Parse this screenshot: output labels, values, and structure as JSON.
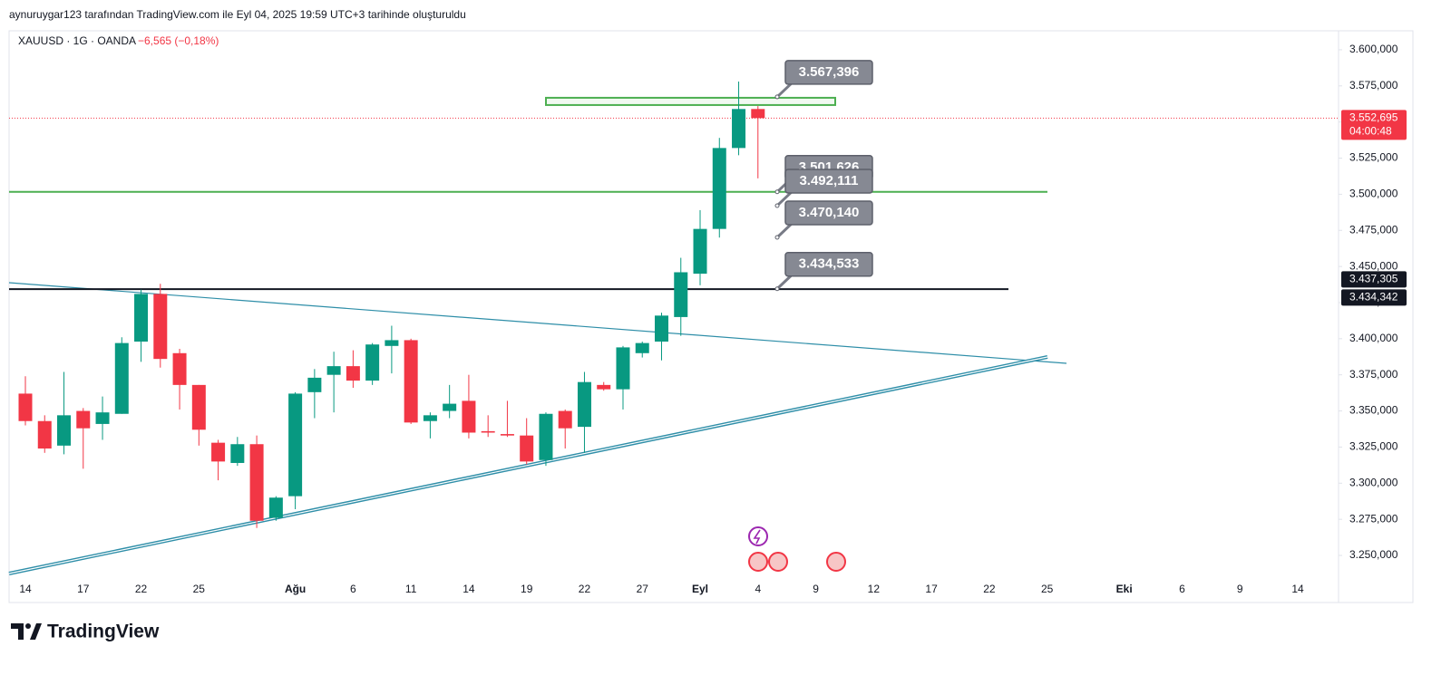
{
  "header": {
    "text": "aynuruygar123 tarafından TradingView.com ile Eyl 04, 2025 19:59 UTC+3 tarihinde oluşturuldu"
  },
  "footer": {
    "brand": "TradingView"
  },
  "chart_data": {
    "type": "candlestick",
    "symbol": "XAUUSD · 1G · OANDA",
    "change": "−6,565 (−0,18%)",
    "up_color": "#089981",
    "down_color": "#f23645",
    "grid": false,
    "categories": [
      "14",
      null,
      null,
      "17",
      null,
      null,
      "22",
      null,
      null,
      "25",
      null,
      null,
      null,
      null,
      "Ağu",
      null,
      null,
      "6",
      null,
      null,
      "11",
      null,
      null,
      "14",
      null,
      null,
      "19",
      null,
      null,
      "22",
      null,
      null,
      "27",
      null,
      null,
      "Eyl",
      null,
      null,
      "4",
      null,
      null,
      "9",
      null,
      null,
      "12",
      null,
      null,
      "17",
      null,
      null,
      "22",
      null,
      null,
      "25",
      null,
      null,
      null,
      "Eki",
      null,
      null,
      "6",
      null,
      null,
      "9",
      null,
      null,
      "14"
    ],
    "open": [
      3362,
      3343,
      3326,
      3350,
      3341,
      3348,
      3398,
      3431,
      3390,
      3368,
      3328,
      3314,
      3327,
      3276,
      3291,
      3363,
      3375,
      3381,
      3371,
      3395,
      3399,
      3343,
      3350,
      3357,
      3336,
      3334,
      3333,
      3316,
      3350,
      3339,
      3368,
      3365,
      3390,
      3398,
      3415,
      3445,
      3476,
      3532,
      3559,
      null,
      null,
      null,
      null,
      null,
      null,
      null,
      null,
      null,
      null,
      null,
      null,
      null,
      null,
      null,
      null,
      null,
      null,
      null,
      null,
      null,
      null,
      null,
      null,
      null,
      null,
      null,
      null
    ],
    "high": [
      3374,
      3347,
      3377,
      3352,
      3360,
      3401,
      3434,
      3438,
      3393,
      3368,
      3330,
      3332,
      3333,
      3291,
      3363,
      3379,
      3391,
      3392,
      3397,
      3409,
      3400,
      3349,
      3368,
      3375,
      3347,
      3357,
      3345,
      3349,
      3351,
      3377,
      3370,
      3395,
      3398,
      3418,
      3456,
      3489,
      3539,
      3578,
      3561,
      null,
      null,
      null,
      null,
      null,
      null,
      null,
      null,
      null,
      null,
      null,
      null,
      null,
      null,
      null,
      null,
      null,
      null,
      null,
      null,
      null,
      null,
      null,
      null,
      null,
      null,
      null,
      null
    ],
    "low": [
      3340,
      3321,
      3320,
      3310,
      3330,
      3348,
      3384,
      3380,
      3351,
      3326,
      3302,
      3312,
      3269,
      3274,
      3282,
      3345,
      3349,
      3366,
      3368,
      3376,
      3341,
      3331,
      3345,
      3331,
      3332,
      3332,
      3313,
      3312,
      3324,
      3321,
      3364,
      3351,
      3387,
      3385,
      3402,
      3437,
      3470,
      3527,
      3511,
      null,
      null,
      null,
      null,
      null,
      null,
      null,
      null,
      null,
      null,
      null,
      null,
      null,
      null,
      null,
      null,
      null,
      null,
      null,
      null,
      null,
      null,
      null,
      null,
      null,
      null,
      null,
      null
    ],
    "close": [
      3343,
      3324,
      3347,
      3338,
      3349,
      3397,
      3431,
      3386,
      3368,
      3337,
      3315,
      3327,
      3274,
      3290,
      3362,
      3373,
      3381,
      3371,
      3396,
      3399,
      3342,
      3347,
      3355,
      3335,
      3335,
      3333,
      3315,
      3348,
      3338,
      3370,
      3365,
      3394,
      3397,
      3416,
      3446,
      3476,
      3532,
      3559,
      3552.695,
      null,
      null,
      null,
      null,
      null,
      null,
      null,
      null,
      null,
      null,
      null,
      null,
      null,
      null,
      null,
      null,
      null,
      null,
      null,
      null,
      null,
      null,
      null,
      null,
      null,
      null,
      null,
      null
    ],
    "ylim": [
      3217.4,
      3612.5
    ],
    "yticks": [
      {
        "value": 3250,
        "label": "3.250,000"
      },
      {
        "value": 3275,
        "label": "3.275,000"
      },
      {
        "value": 3300,
        "label": "3.300,000"
      },
      {
        "value": 3325,
        "label": "3.325,000"
      },
      {
        "value": 3350,
        "label": "3.350,000"
      },
      {
        "value": 3375,
        "label": "3.375,000"
      },
      {
        "value": 3400,
        "label": "3.400,000"
      },
      {
        "value": 3425,
        "label": "3.425,000"
      },
      {
        "value": 3450,
        "label": "3.450,000"
      },
      {
        "value": 3475,
        "label": "3.475,000"
      },
      {
        "value": 3500,
        "label": "3.500,000"
      },
      {
        "value": 3525,
        "label": "3.525,000"
      },
      {
        "value": 3550,
        "label": "3.550,000"
      },
      {
        "value": 3575,
        "label": "3.575,000"
      },
      {
        "value": 3600,
        "label": "3.600,000"
      }
    ],
    "current_price": {
      "value": 3552.695,
      "label": "3.552,695",
      "countdown": "04:00:48",
      "color": "#f23645"
    },
    "axis_badges": [
      {
        "value": 3437.305,
        "label": "3.437,305"
      },
      {
        "value": 3434.342,
        "label": "3.434,342"
      }
    ],
    "price_notes": [
      {
        "value": 3567.396,
        "label": "3.567,396"
      },
      {
        "value": 3501.626,
        "label": "3.501,626"
      },
      {
        "value": 3492.111,
        "label": "3.492,111"
      },
      {
        "value": 3470.14,
        "label": "3.470,140"
      },
      {
        "value": 3434.533,
        "label": "3.434,533"
      }
    ]
  }
}
